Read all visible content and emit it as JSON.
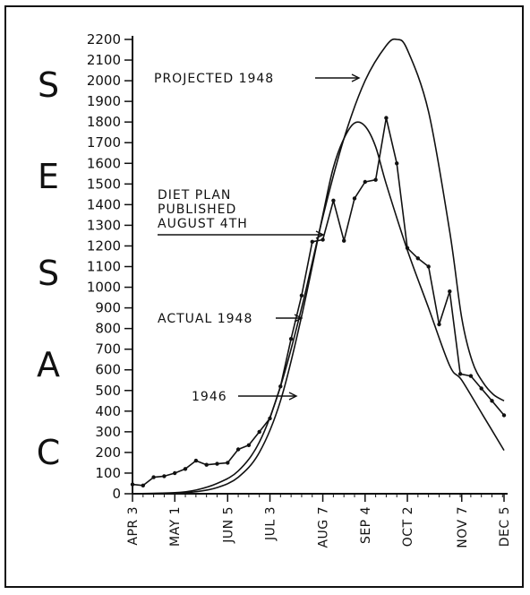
{
  "chart_data": {
    "type": "line",
    "title": "",
    "ylabel_letters": [
      "C",
      "A",
      "S",
      "E",
      "S"
    ],
    "xlabel": "",
    "ylim": [
      0,
      2200
    ],
    "xlim_days": [
      0,
      246
    ],
    "y_ticks": [
      "0",
      "100",
      "200",
      "300",
      "400",
      "500",
      "600",
      "700",
      "800",
      "900",
      "1000",
      "1100",
      "1200",
      "1300",
      "1400",
      "1500",
      "1600",
      "1700",
      "1800",
      "1900",
      "2000",
      "2100",
      "2200"
    ],
    "x_ticks": [
      {
        "label": "APR 3",
        "day": 0
      },
      {
        "label": "MAY 1",
        "day": 28
      },
      {
        "label": "JUN 5",
        "day": 63
      },
      {
        "label": "JUL 3",
        "day": 91
      },
      {
        "label": "AUG 7",
        "day": 126
      },
      {
        "label": "SEP 4",
        "day": 154
      },
      {
        "label": "OCT 2",
        "day": 182
      },
      {
        "label": "NOV 7",
        "day": 218
      },
      {
        "label": "DEC 5",
        "day": 246
      }
    ],
    "series": [
      {
        "name": "ACTUAL 1948",
        "markers": true,
        "points": [
          [
            0,
            45
          ],
          [
            7,
            40
          ],
          [
            14,
            80
          ],
          [
            21,
            85
          ],
          [
            28,
            100
          ],
          [
            35,
            120
          ],
          [
            42,
            160
          ],
          [
            49,
            140
          ],
          [
            56,
            145
          ],
          [
            63,
            150
          ],
          [
            70,
            215
          ],
          [
            77,
            235
          ],
          [
            84,
            300
          ],
          [
            91,
            365
          ],
          [
            98,
            520
          ],
          [
            105,
            750
          ],
          [
            112,
            960
          ],
          [
            119,
            1220
          ],
          [
            126,
            1230
          ],
          [
            133,
            1420
          ],
          [
            140,
            1225
          ],
          [
            147,
            1430
          ],
          [
            154,
            1510
          ],
          [
            161,
            1520
          ],
          [
            168,
            1820
          ],
          [
            175,
            1600
          ],
          [
            182,
            1190
          ],
          [
            189,
            1140
          ],
          [
            196,
            1100
          ],
          [
            203,
            820
          ],
          [
            210,
            980
          ],
          [
            217,
            580
          ],
          [
            224,
            570
          ],
          [
            231,
            510
          ],
          [
            238,
            450
          ],
          [
            246,
            380
          ]
        ]
      },
      {
        "name": "1946",
        "markers": false,
        "points": [
          [
            0,
            0
          ],
          [
            28,
            3
          ],
          [
            42,
            10
          ],
          [
            56,
            30
          ],
          [
            70,
            80
          ],
          [
            84,
            200
          ],
          [
            98,
            450
          ],
          [
            112,
            860
          ],
          [
            126,
            1350
          ],
          [
            133,
            1580
          ],
          [
            140,
            1720
          ],
          [
            147,
            1795
          ],
          [
            154,
            1780
          ],
          [
            161,
            1680
          ],
          [
            168,
            1500
          ],
          [
            182,
            1180
          ],
          [
            196,
            900
          ],
          [
            210,
            620
          ],
          [
            218,
            550
          ],
          [
            232,
            380
          ],
          [
            246,
            210
          ]
        ]
      },
      {
        "name": "PROJECTED 1948",
        "markers": false,
        "points": [
          [
            0,
            0
          ],
          [
            28,
            5
          ],
          [
            42,
            18
          ],
          [
            56,
            50
          ],
          [
            70,
            110
          ],
          [
            84,
            250
          ],
          [
            98,
            520
          ],
          [
            112,
            900
          ],
          [
            126,
            1340
          ],
          [
            140,
            1720
          ],
          [
            154,
            2000
          ],
          [
            168,
            2170
          ],
          [
            175,
            2200
          ],
          [
            182,
            2150
          ],
          [
            196,
            1850
          ],
          [
            210,
            1270
          ],
          [
            218,
            850
          ],
          [
            225,
            640
          ],
          [
            232,
            540
          ],
          [
            239,
            480
          ],
          [
            246,
            450
          ]
        ]
      }
    ],
    "annotations": [
      {
        "lines": [
          "PROJECTED 1948"
        ],
        "points_to": "PROJECTED 1948"
      },
      {
        "lines": [
          "DIET PLAN",
          "PUBLISHED",
          "AUGUST 4TH"
        ],
        "points_to": "AUGUST 4TH"
      },
      {
        "lines": [
          "ACTUAL 1948"
        ],
        "points_to": "ACTUAL 1948"
      },
      {
        "lines": [
          "1946"
        ],
        "points_to": "1946"
      }
    ]
  }
}
